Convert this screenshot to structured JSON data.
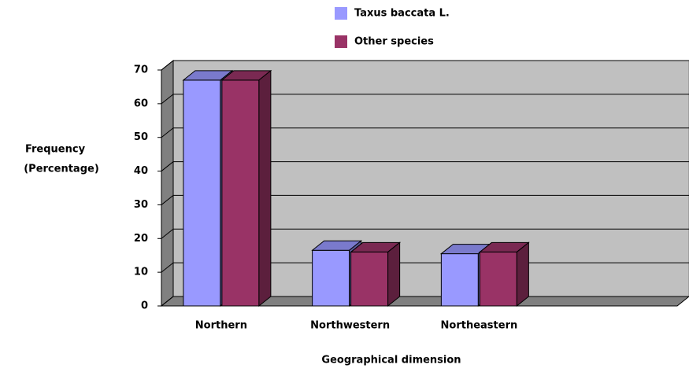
{
  "chart_data": {
    "type": "bar3d",
    "x_label": "Geographical dimension",
    "y_label": [
      "Frequency",
      "(Percentage)"
    ],
    "categories": [
      "Northern",
      "Northwestern",
      "Northeastern",
      null
    ],
    "series": [
      {
        "name": "Taxus baccata L.",
        "color": "#9999ff",
        "values": [
          67,
          16.5,
          15.5,
          null
        ]
      },
      {
        "name": "Other species",
        "color": "#993366",
        "values": [
          67,
          16,
          16,
          null
        ]
      }
    ],
    "ylim": [
      0,
      70
    ],
    "yticks": [
      0,
      10,
      20,
      30,
      40,
      50,
      60,
      70
    ],
    "grid": true,
    "legend": "top"
  }
}
